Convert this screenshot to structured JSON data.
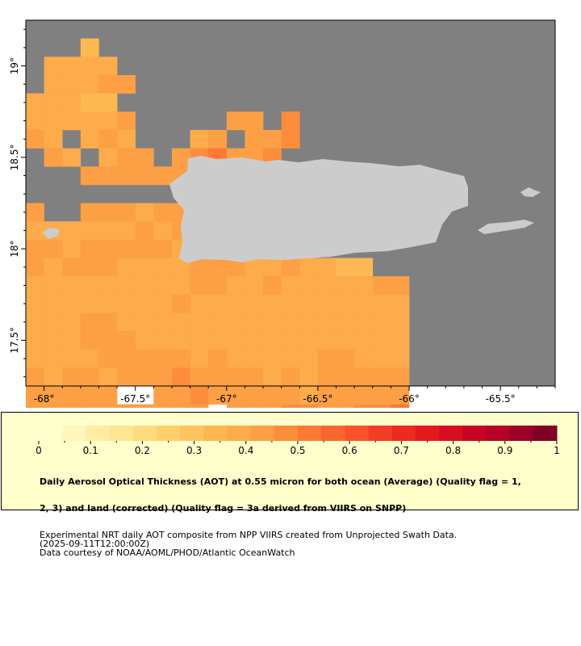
{
  "map": {
    "lon_range": [
      -68.1,
      -65.2
    ],
    "lat_range": [
      17.25,
      19.25
    ],
    "x_ticks": [
      {
        "value": -68,
        "label": "-68°"
      },
      {
        "value": -67.5,
        "label": "-67.5°"
      },
      {
        "value": -67,
        "label": "-67°"
      },
      {
        "value": -66.5,
        "label": "-66.5°"
      },
      {
        "value": -66,
        "label": "-66°"
      },
      {
        "value": -65.5,
        "label": "-65.5°"
      }
    ],
    "y_ticks": [
      {
        "value": 19,
        "label": "19°"
      },
      {
        "value": 18.5,
        "label": "18.5°"
      },
      {
        "value": 18,
        "label": "18°"
      },
      {
        "value": 17.5,
        "label": "17.5°"
      }
    ],
    "no_data_color": "#808080",
    "land_color": "#cccccc",
    "chart_data": {
      "type": "heatmap",
      "variable": "Aerosol Optical Thickness at 0.55 micron",
      "grid_origin_lon": -68.1,
      "grid_origin_lat": 19.25,
      "grid_step_deg": 0.1,
      "row_values": [
        [
          null,
          null,
          null,
          null,
          null,
          null,
          null,
          null,
          null,
          null,
          null,
          null,
          null,
          null,
          null,
          null,
          null,
          null,
          null,
          null,
          null,
          null,
          null,
          null,
          null,
          null,
          null,
          null,
          null
        ],
        [
          null,
          null,
          null,
          0.35,
          null,
          null,
          null,
          null,
          null,
          null,
          null,
          null,
          null,
          null,
          null,
          null,
          null,
          null,
          null,
          null,
          null,
          null,
          null,
          null,
          null,
          null,
          null,
          null,
          null
        ],
        [
          null,
          0.4,
          0.38,
          0.38,
          0.4,
          null,
          null,
          null,
          null,
          null,
          null,
          null,
          null,
          null,
          null,
          null,
          null,
          null,
          null,
          null,
          null,
          null,
          null,
          null,
          null,
          null,
          null,
          null,
          null
        ],
        [
          null,
          0.38,
          0.4,
          0.4,
          0.42,
          0.42,
          null,
          null,
          null,
          null,
          null,
          null,
          null,
          null,
          null,
          null,
          null,
          null,
          null,
          null,
          null,
          null,
          null,
          null,
          null,
          null,
          null,
          null,
          null
        ],
        [
          0.4,
          0.38,
          0.38,
          0.36,
          0.36,
          null,
          null,
          null,
          null,
          null,
          null,
          null,
          null,
          null,
          null,
          null,
          null,
          null,
          null,
          null,
          null,
          null,
          null,
          null,
          null,
          null,
          null,
          null,
          null
        ],
        [
          0.4,
          0.4,
          0.4,
          0.38,
          0.4,
          0.42,
          null,
          null,
          null,
          null,
          null,
          0.42,
          0.44,
          null,
          0.46,
          null,
          null,
          null,
          null,
          null,
          null,
          null,
          null,
          null,
          null,
          null,
          null,
          null,
          null
        ],
        [
          0.42,
          0.4,
          null,
          0.4,
          0.42,
          0.4,
          null,
          null,
          null,
          0.4,
          0.42,
          null,
          0.45,
          0.44,
          0.48,
          null,
          null,
          null,
          null,
          null,
          null,
          null,
          null,
          null,
          null,
          null,
          null,
          null,
          null
        ],
        [
          null,
          0.42,
          0.38,
          null,
          0.4,
          0.42,
          0.42,
          null,
          0.42,
          0.46,
          0.5,
          0.44,
          0.44,
          0.46,
          null,
          null,
          null,
          null,
          null,
          null,
          null,
          null,
          null,
          null,
          null,
          null,
          null,
          null,
          null
        ],
        [
          null,
          null,
          null,
          0.45,
          0.44,
          0.42,
          0.42,
          0.45,
          0.42,
          0.48,
          null,
          null,
          null,
          null,
          null,
          null,
          null,
          null,
          null,
          null,
          null,
          null,
          null,
          null,
          null,
          null,
          null,
          null,
          null
        ],
        [
          null,
          null,
          null,
          null,
          null,
          null,
          null,
          null,
          null,
          null,
          null,
          null,
          null,
          null,
          null,
          null,
          null,
          null,
          null,
          null,
          null,
          null,
          null,
          null,
          null,
          null,
          null,
          null,
          null
        ],
        [
          0.42,
          null,
          null,
          0.45,
          0.44,
          0.42,
          0.4,
          0.44,
          0.42,
          null,
          null,
          null,
          null,
          null,
          null,
          null,
          null,
          null,
          null,
          null,
          null,
          null,
          null,
          null,
          null,
          null,
          null,
          null,
          null
        ],
        [
          0.4,
          0.38,
          0.4,
          0.38,
          0.4,
          0.4,
          0.42,
          0.4,
          0.42,
          null,
          null,
          null,
          null,
          null,
          null,
          null,
          null,
          null,
          null,
          null,
          null,
          null,
          null,
          null,
          null,
          null,
          null,
          null,
          null
        ],
        [
          0.42,
          0.42,
          0.4,
          0.42,
          0.42,
          0.42,
          0.44,
          0.42,
          0.4,
          0.44,
          null,
          null,
          null,
          null,
          null,
          null,
          null,
          null,
          null,
          null,
          null,
          null,
          null,
          null,
          null,
          null,
          null,
          null,
          null
        ],
        [
          0.42,
          0.4,
          0.42,
          0.44,
          0.42,
          0.4,
          0.4,
          0.4,
          0.4,
          0.42,
          0.42,
          0.42,
          0.4,
          0.4,
          0.42,
          0.4,
          0.38,
          0.36,
          0.35,
          null,
          null,
          null,
          null,
          null,
          null,
          null,
          null,
          null,
          null
        ],
        [
          0.4,
          0.4,
          0.4,
          0.4,
          0.4,
          0.4,
          0.4,
          0.4,
          0.4,
          0.42,
          0.42,
          0.4,
          0.4,
          0.42,
          0.4,
          0.4,
          0.4,
          0.4,
          0.4,
          0.42,
          0.42,
          null,
          null,
          null,
          null,
          null,
          null,
          null,
          null
        ],
        [
          0.4,
          0.4,
          0.4,
          0.4,
          0.4,
          0.4,
          0.4,
          0.4,
          0.42,
          0.4,
          0.4,
          0.4,
          0.4,
          0.4,
          0.4,
          0.4,
          0.4,
          0.4,
          0.4,
          0.4,
          0.4,
          null,
          null,
          null,
          null,
          null,
          null,
          null,
          null
        ],
        [
          0.4,
          0.4,
          0.4,
          0.42,
          0.42,
          0.4,
          0.4,
          0.4,
          0.4,
          0.4,
          0.4,
          0.4,
          0.4,
          0.4,
          0.4,
          0.4,
          0.4,
          0.4,
          0.4,
          0.4,
          0.4,
          null,
          null,
          null,
          null,
          null,
          null,
          null,
          null
        ],
        [
          0.4,
          0.4,
          0.4,
          0.42,
          0.42,
          0.42,
          0.4,
          0.4,
          0.38,
          0.38,
          0.38,
          0.38,
          0.38,
          0.38,
          0.38,
          0.38,
          0.4,
          0.38,
          0.4,
          0.4,
          0.4,
          null,
          null,
          null,
          null,
          null,
          null,
          null,
          null
        ],
        [
          0.4,
          0.4,
          0.4,
          0.4,
          0.42,
          0.42,
          0.42,
          0.42,
          0.42,
          0.4,
          0.42,
          0.4,
          0.4,
          0.4,
          0.4,
          0.4,
          0.42,
          0.42,
          0.4,
          0.4,
          0.4,
          null,
          null,
          null,
          null,
          null,
          null,
          null,
          null
        ],
        [
          0.42,
          0.4,
          0.42,
          0.42,
          0.4,
          0.44,
          0.44,
          0.44,
          0.46,
          0.42,
          0.42,
          0.42,
          0.42,
          0.4,
          0.42,
          0.4,
          0.42,
          0.42,
          0.42,
          0.42,
          0.42,
          null,
          null,
          null,
          null,
          null,
          null,
          null,
          null
        ],
        [
          0.42,
          0.42,
          0.42,
          0.42,
          0.42,
          null,
          null,
          0.44,
          0.42,
          0.48,
          0.44,
          0.44,
          0.42,
          0.42,
          0.42,
          0.4,
          0.42,
          0.42,
          0.42,
          0.42,
          0.42,
          null,
          null,
          null,
          null,
          null,
          null,
          null,
          null
        ],
        [
          0.42,
          0.42,
          0.44,
          0.42,
          0.42,
          0.42,
          0.42,
          0.44,
          0.42,
          0.44,
          null,
          0.42,
          0.42,
          0.42,
          0.46,
          0.46,
          0.44,
          0.42,
          0.48,
          0.48,
          0.5,
          null,
          null,
          null,
          null,
          null,
          null,
          null,
          null
        ],
        [
          0.42,
          null,
          null,
          0.44,
          0.42,
          0.42,
          0.4,
          0.4,
          0.4,
          0.4,
          0.4,
          0.4,
          0.4,
          0.4,
          0.46,
          0.46,
          0.44,
          0.42,
          0.4,
          null,
          null,
          null,
          null,
          null,
          null,
          null,
          null,
          null,
          null
        ]
      ]
    }
  },
  "colorbar": {
    "vmin": 0,
    "vmax": 1,
    "colors": [
      "#ffffcc",
      "#fff6b9",
      "#ffeda4",
      "#fee592",
      "#fedb7f",
      "#fed06d",
      "#fec45f",
      "#feb852",
      "#fdab4b",
      "#fd9f44",
      "#fd8d3c",
      "#fc7936",
      "#fc6530",
      "#fa532b",
      "#f43d26",
      "#ec2a22",
      "#e31a1c",
      "#d60e1f",
      "#c70423",
      "#b60026",
      "#9d0026",
      "#800026"
    ],
    "tick_labels": [
      "0",
      "0.1",
      "0.2",
      "0.3",
      "0.4",
      "0.5",
      "0.6",
      "0.7",
      "0.8",
      "0.9",
      "1"
    ]
  },
  "legend": {
    "title_line1": "Daily Aerosol Optical Thickness (AOT) at 0.55 micron for both ocean (Average) (Quality flag = 1,",
    "title_line2": "2, 3) and land (corrected) (Quality flag = 3a derived from VIIRS on SNPP)",
    "line3": "Experimental NRT daily AOT composite from NPP VIIRS created from Unprojected Swath Data.",
    "line4": "(2025-09-11T12:00:00Z)",
    "line5": "Data courtesy of NOAA/AOML/PHOD/Atlantic OceanWatch"
  }
}
